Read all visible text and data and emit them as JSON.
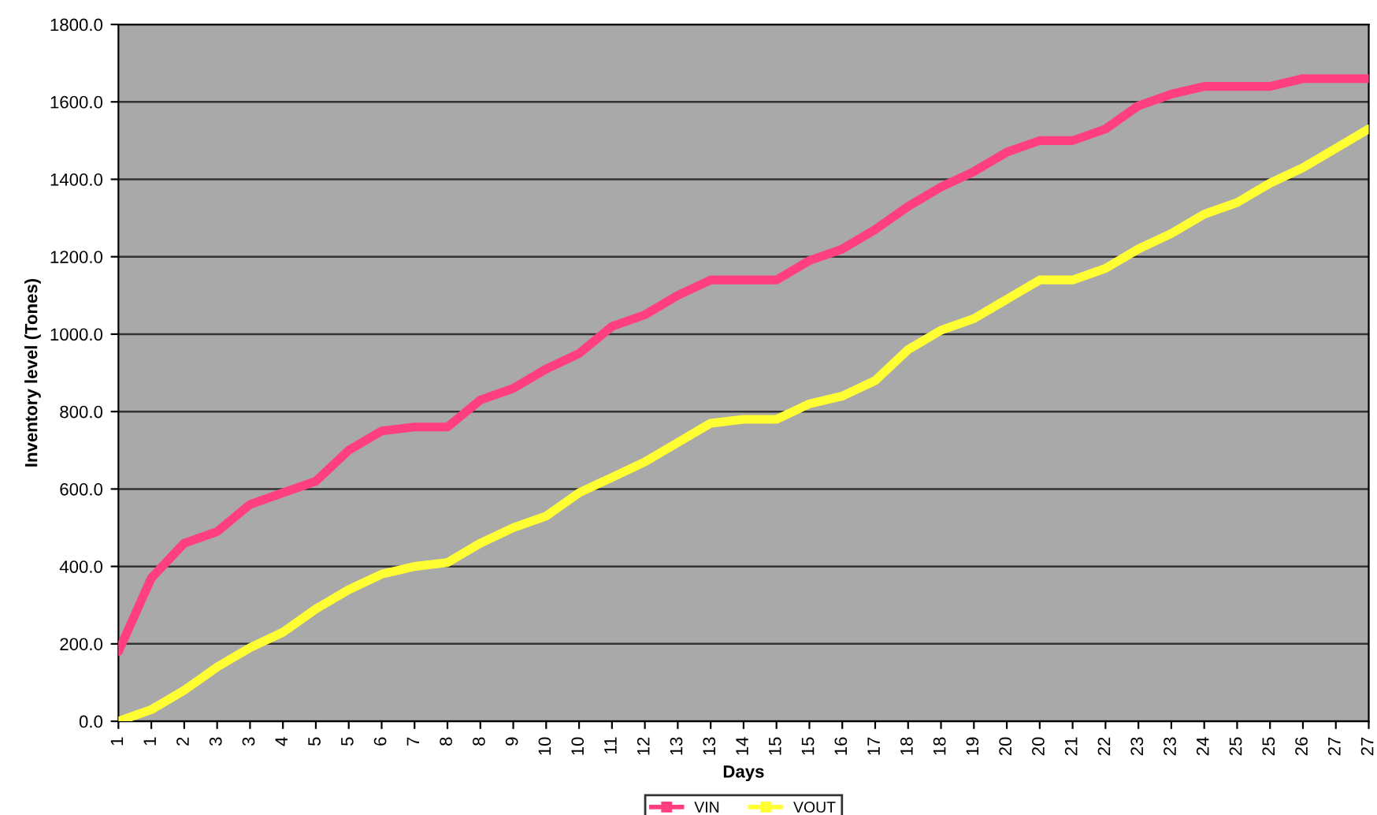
{
  "chart_data": {
    "type": "line",
    "xlabel": "Days",
    "ylabel": "Inventory level (Tones)",
    "categories": [
      "1",
      "1",
      "2",
      "3",
      "3",
      "4",
      "5",
      "5",
      "6",
      "7",
      "8",
      "8",
      "9",
      "10",
      "10",
      "11",
      "12",
      "13",
      "13",
      "14",
      "15",
      "15",
      "16",
      "17",
      "18",
      "18",
      "19",
      "20",
      "20",
      "21",
      "22",
      "23",
      "23",
      "24",
      "25",
      "25",
      "26",
      "27",
      "27"
    ],
    "ylim": [
      0,
      1800
    ],
    "yticks": [
      {
        "value": 0,
        "label": "0.0"
      },
      {
        "value": 200,
        "label": "200.0"
      },
      {
        "value": 400,
        "label": "400.0"
      },
      {
        "value": 600,
        "label": "600.0"
      },
      {
        "value": 800,
        "label": "800.0"
      },
      {
        "value": 1000,
        "label": "1000.0"
      },
      {
        "value": 1200,
        "label": "1200.0"
      },
      {
        "value": 1400,
        "label": "1400.0"
      },
      {
        "value": 1600,
        "label": "1600.0"
      },
      {
        "value": 1800,
        "label": "1800.0"
      }
    ],
    "grid": "y",
    "legend": "bottom",
    "line_style": "solid",
    "series": [
      {
        "name": "VIN",
        "color": "#ff3f7f",
        "values": [
          180,
          370,
          460,
          490,
          560,
          590,
          620,
          700,
          750,
          760,
          760,
          830,
          860,
          910,
          950,
          1020,
          1050,
          1100,
          1140,
          1140,
          1140,
          1190,
          1220,
          1270,
          1330,
          1380,
          1420,
          1470,
          1500,
          1500,
          1530,
          1590,
          1620,
          1640,
          1640,
          1640,
          1660,
          1660,
          1660
        ]
      },
      {
        "name": "VOUT",
        "color": "#ffff33",
        "values": [
          0,
          30,
          80,
          140,
          190,
          230,
          290,
          340,
          380,
          400,
          410,
          460,
          500,
          530,
          590,
          630,
          670,
          720,
          770,
          780,
          780,
          820,
          840,
          880,
          960,
          1010,
          1040,
          1090,
          1140,
          1140,
          1170,
          1220,
          1260,
          1310,
          1340,
          1390,
          1430,
          1480,
          1530
        ]
      }
    ]
  }
}
